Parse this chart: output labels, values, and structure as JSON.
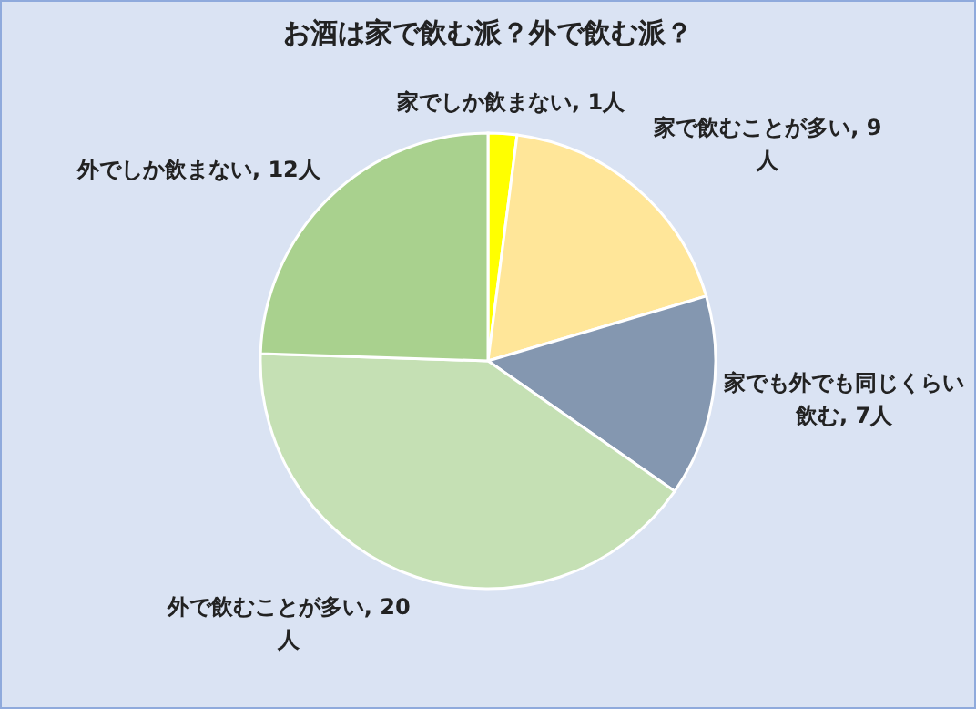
{
  "chart_data": {
    "type": "pie",
    "title": "お酒は家で飲む派？外で飲む派？",
    "categories": [
      "家でしか飲まない",
      "家で飲むことが多い",
      "家でも外でも同じくらい飲む",
      "外で飲むことが多い",
      "外でしか飲まない"
    ],
    "values": [
      1,
      9,
      7,
      20,
      12
    ],
    "value_labels": [
      ", 1人",
      ", 9人",
      ", 7人",
      ", 20人",
      ", 12人"
    ],
    "colors": [
      "#ffff00",
      "#ffe699",
      "#8497b0",
      "#c5e0b4",
      "#a9d18e"
    ]
  }
}
